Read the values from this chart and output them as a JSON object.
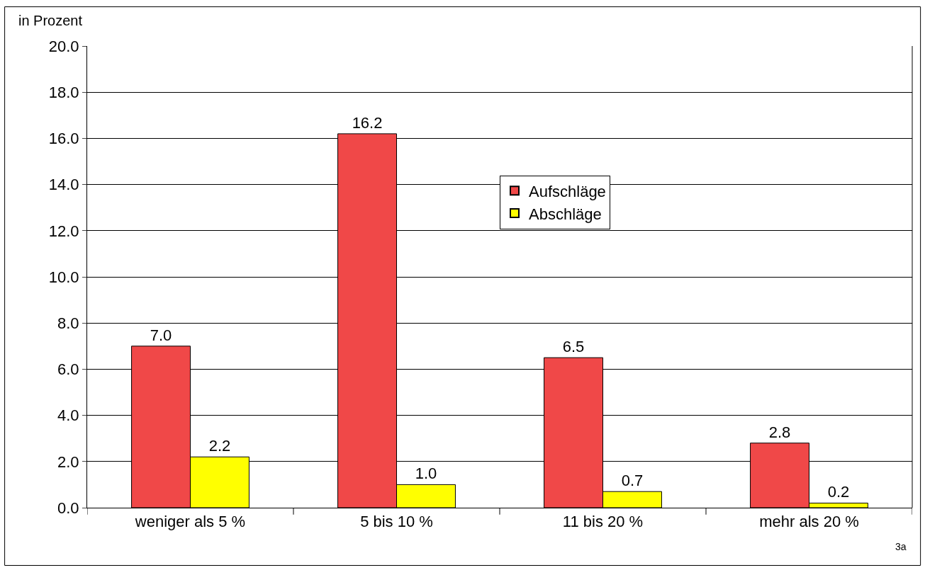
{
  "chart_data": {
    "type": "bar",
    "ylabel": "in Prozent",
    "categories": [
      "weniger als 5 %",
      "5 bis 10 %",
      "11 bis 20 %",
      "mehr als 20 %"
    ],
    "series": [
      {
        "name": "Aufschläge",
        "color": "#f04848",
        "values": [
          7.0,
          16.2,
          6.5,
          2.8
        ],
        "value_labels": [
          "7.0",
          "16.2",
          "6.5",
          "2.8"
        ]
      },
      {
        "name": "Abschläge",
        "color": "#ffff00",
        "values": [
          2.2,
          1.0,
          0.7,
          0.2
        ],
        "value_labels": [
          "2.2",
          "1.0",
          "0.7",
          "0.2"
        ]
      }
    ],
    "ylim": [
      0,
      20
    ],
    "yticks": [
      {
        "value": 0,
        "label": "0.0"
      },
      {
        "value": 2,
        "label": "2.0"
      },
      {
        "value": 4,
        "label": "4.0"
      },
      {
        "value": 6,
        "label": "6.0"
      },
      {
        "value": 8,
        "label": "8.0"
      },
      {
        "value": 10,
        "label": "10.0"
      },
      {
        "value": 12,
        "label": "12.0"
      },
      {
        "value": 14,
        "label": "14.0"
      },
      {
        "value": 16,
        "label": "16.0"
      },
      {
        "value": 18,
        "label": "18.0"
      },
      {
        "value": 20,
        "label": "20.0"
      }
    ],
    "grid": "y",
    "legend": "top",
    "annotations": [
      "3a"
    ]
  }
}
